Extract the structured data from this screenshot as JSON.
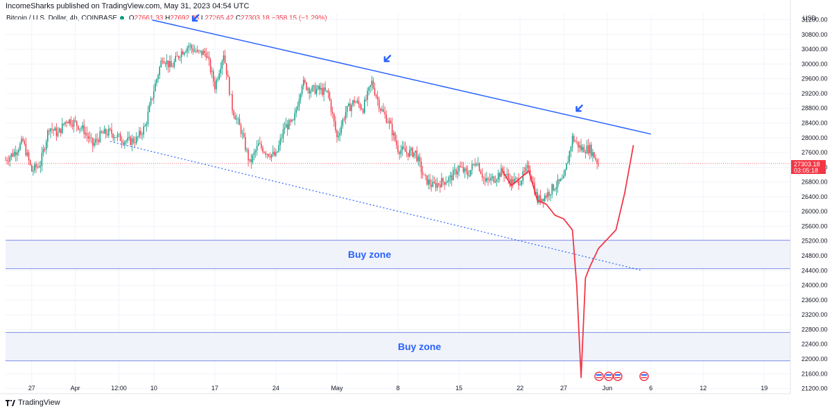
{
  "header": {
    "published": "IncomeSharks published on TradingView.com, May 31, 2023 04:54 UTC",
    "symbol": "Bitcoin / U.S. Dollar, 4h, COINBASE",
    "open_label": "O",
    "open": "27661.33",
    "high_label": "H",
    "high": "27692.25",
    "low_label": "L",
    "low": "27265.42",
    "close_label": "C",
    "close": "27303.18",
    "change": "−358.15 (−1.29%)"
  },
  "footer": {
    "brand": "TradingView",
    "logo": "tv-logo-icon"
  },
  "colors": {
    "up": "#089981",
    "down": "#f23645",
    "trendline": "#2962ff",
    "projection": "#f23645",
    "zone_fill": "#f0f3fa",
    "zone_border": "#2962ff"
  },
  "chart_data": {
    "type": "candlestick",
    "title": "",
    "currency": "USD",
    "price_tag": {
      "value": "27303.18",
      "countdown": "03:05:18"
    },
    "x_ticks": [
      "27",
      "Apr",
      "12:00",
      "10",
      "17",
      "24",
      "May",
      "8",
      "15",
      "22",
      "27",
      "Jun",
      "6",
      "12",
      "19"
    ],
    "y_ticks": [
      "31200.00",
      "30800.00",
      "30400.00",
      "30000.00",
      "29600.00",
      "29200.00",
      "28800.00",
      "28400.00",
      "28000.00",
      "27600.00",
      "27200.00",
      "26800.00",
      "26400.00",
      "26000.00",
      "25600.00",
      "25200.00",
      "24800.00",
      "24400.00",
      "24000.00",
      "23600.00",
      "23200.00",
      "22800.00",
      "22400.00",
      "22000.00",
      "21600.00",
      "21200.00"
    ],
    "ylim": [
      21060,
      31360
    ],
    "time_range": [
      "2023-03-24",
      "2023-06-22"
    ],
    "candles_range": [
      "2023-03-24",
      "2023-05-31"
    ],
    "close_path": [
      [
        "2023-03-24",
        27400
      ],
      [
        "2023-03-25",
        27600
      ],
      [
        "2023-03-26",
        27900
      ],
      [
        "2023-03-27",
        27100
      ],
      [
        "2023-03-28",
        27300
      ],
      [
        "2023-03-29",
        28300
      ],
      [
        "2023-03-30",
        28100
      ],
      [
        "2023-03-31",
        28500
      ],
      [
        "2023-04-01",
        28400
      ],
      [
        "2023-04-02",
        28200
      ],
      [
        "2023-04-03",
        27800
      ],
      [
        "2023-04-04",
        28100
      ],
      [
        "2023-04-05",
        28150
      ],
      [
        "2023-04-06",
        28000
      ],
      [
        "2023-04-07",
        27900
      ],
      [
        "2023-04-08",
        27950
      ],
      [
        "2023-04-09",
        28300
      ],
      [
        "2023-04-10",
        29300
      ],
      [
        "2023-04-11",
        30200
      ],
      [
        "2023-04-12",
        29900
      ],
      [
        "2023-04-13",
        30300
      ],
      [
        "2023-04-14",
        30500
      ],
      [
        "2023-04-15",
        30300
      ],
      [
        "2023-04-16",
        30300
      ],
      [
        "2023-04-17",
        29400
      ],
      [
        "2023-04-18",
        30300
      ],
      [
        "2023-04-19",
        28800
      ],
      [
        "2023-04-20",
        28200
      ],
      [
        "2023-04-21",
        27300
      ],
      [
        "2023-04-22",
        27800
      ],
      [
        "2023-04-23",
        27600
      ],
      [
        "2023-04-24",
        27500
      ],
      [
        "2023-04-25",
        28300
      ],
      [
        "2023-04-26",
        28400
      ],
      [
        "2023-04-27",
        29500
      ],
      [
        "2023-04-28",
        29300
      ],
      [
        "2023-04-29",
        29300
      ],
      [
        "2023-04-30",
        29200
      ],
      [
        "2023-05-01",
        28000
      ],
      [
        "2023-05-02",
        28700
      ],
      [
        "2023-05-03",
        29000
      ],
      [
        "2023-05-04",
        28800
      ],
      [
        "2023-05-05",
        29500
      ],
      [
        "2023-05-06",
        28800
      ],
      [
        "2023-05-07",
        28400
      ],
      [
        "2023-05-08",
        27700
      ],
      [
        "2023-05-09",
        27600
      ],
      [
        "2023-05-10",
        27600
      ],
      [
        "2023-05-11",
        26900
      ],
      [
        "2023-05-12",
        26700
      ],
      [
        "2023-05-13",
        26800
      ],
      [
        "2023-05-14",
        26900
      ],
      [
        "2023-05-15",
        27200
      ],
      [
        "2023-05-16",
        27000
      ],
      [
        "2023-05-17",
        27400
      ],
      [
        "2023-05-18",
        26800
      ],
      [
        "2023-05-19",
        26900
      ],
      [
        "2023-05-20",
        27100
      ],
      [
        "2023-05-21",
        26800
      ],
      [
        "2023-05-22",
        26850
      ],
      [
        "2023-05-23",
        27200
      ],
      [
        "2023-05-24",
        26300
      ],
      [
        "2023-05-25",
        26450
      ],
      [
        "2023-05-26",
        26700
      ],
      [
        "2023-05-27",
        26850
      ],
      [
        "2023-05-28",
        28000
      ],
      [
        "2023-05-29",
        27700
      ],
      [
        "2023-05-30",
        27700
      ],
      [
        "2023-05-31",
        27303
      ]
    ],
    "annotations": {
      "resistance_line": [
        [
          "2023-04-13",
          31100
        ],
        [
          "2023-06-06",
          28100
        ]
      ],
      "support_line": [
        [
          "2023-04-05",
          27900
        ],
        [
          "2023-06-05",
          24400
        ]
      ],
      "arrows": [
        [
          "2023-04-14",
          30950
        ],
        [
          "2023-05-06",
          29850
        ],
        [
          "2023-05-28",
          28500
        ]
      ],
      "zones": [
        {
          "label": "Buy zone",
          "top": 25220,
          "bottom": 24450
        },
        {
          "label": "Buy zone",
          "top": 22720,
          "bottom": 21950
        }
      ],
      "projection": [
        [
          "2023-05-20",
          27100
        ],
        [
          "2023-05-21",
          26700
        ],
        [
          "2023-05-22",
          26900
        ],
        [
          "2023-05-23",
          27100
        ],
        [
          "2023-05-24",
          26300
        ],
        [
          "2023-05-25",
          26200
        ],
        [
          "2023-05-26",
          25900
        ],
        [
          "2023-05-27",
          25800
        ],
        [
          "2023-05-28",
          25500
        ],
        [
          "2023-05-28T12:00",
          24000
        ],
        [
          "2023-05-29",
          21500
        ],
        [
          "2023-05-29T12:00",
          24200
        ],
        [
          "2023-05-30",
          24500
        ],
        [
          "2023-05-31",
          25000
        ],
        [
          "2023-06-01",
          25250
        ],
        [
          "2023-06-02",
          25500
        ],
        [
          "2023-06-03",
          26500
        ],
        [
          "2023-06-04",
          27800
        ]
      ],
      "events": [
        "us-flag-icon",
        "us-flag-icon",
        "us-flag-icon",
        "us-flag-icon"
      ]
    }
  }
}
